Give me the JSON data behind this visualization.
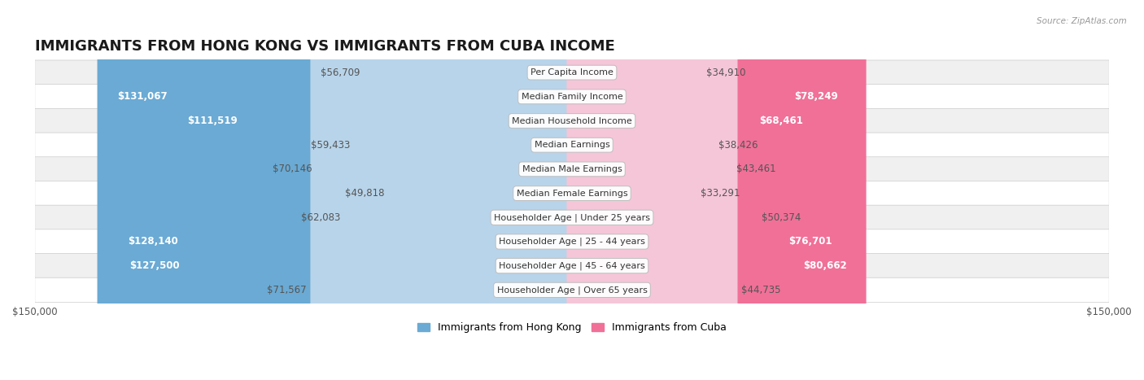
{
  "title": "IMMIGRANTS FROM HONG KONG VS IMMIGRANTS FROM CUBA INCOME",
  "source": "Source: ZipAtlas.com",
  "categories": [
    "Per Capita Income",
    "Median Family Income",
    "Median Household Income",
    "Median Earnings",
    "Median Male Earnings",
    "Median Female Earnings",
    "Householder Age | Under 25 years",
    "Householder Age | 25 - 44 years",
    "Householder Age | 45 - 64 years",
    "Householder Age | Over 65 years"
  ],
  "hong_kong_values": [
    56709,
    131067,
    111519,
    59433,
    70146,
    49818,
    62083,
    128140,
    127500,
    71567
  ],
  "cuba_values": [
    34910,
    78249,
    68461,
    38426,
    43461,
    33291,
    50374,
    76701,
    80662,
    44735
  ],
  "hong_kong_labels": [
    "$56,709",
    "$131,067",
    "$111,519",
    "$59,433",
    "$70,146",
    "$49,818",
    "$62,083",
    "$128,140",
    "$127,500",
    "$71,567"
  ],
  "cuba_labels": [
    "$34,910",
    "$78,249",
    "$68,461",
    "$38,426",
    "$43,461",
    "$33,291",
    "$50,374",
    "$76,701",
    "$80,662",
    "$44,735"
  ],
  "hk_large_threshold": 90000,
  "cuba_large_threshold": 55000,
  "hong_kong_color_light": "#b8d4ea",
  "hong_kong_color_dark": "#6aaad4",
  "cuba_color_light": "#f5c6d8",
  "cuba_color_dark": "#f07098",
  "max_value": 150000,
  "bar_height": 0.62,
  "row_bg_light": "#f0f0f0",
  "row_bg_dark": "#e6e6e6",
  "row_bg_white": "#ffffff",
  "legend_hk": "Immigrants from Hong Kong",
  "legend_cuba": "Immigrants from Cuba",
  "title_fontsize": 13,
  "label_fontsize": 8.5,
  "category_fontsize": 8,
  "axis_label": "$150,000",
  "legend_hk_color": "#6aaad4",
  "legend_cuba_color": "#f07098"
}
